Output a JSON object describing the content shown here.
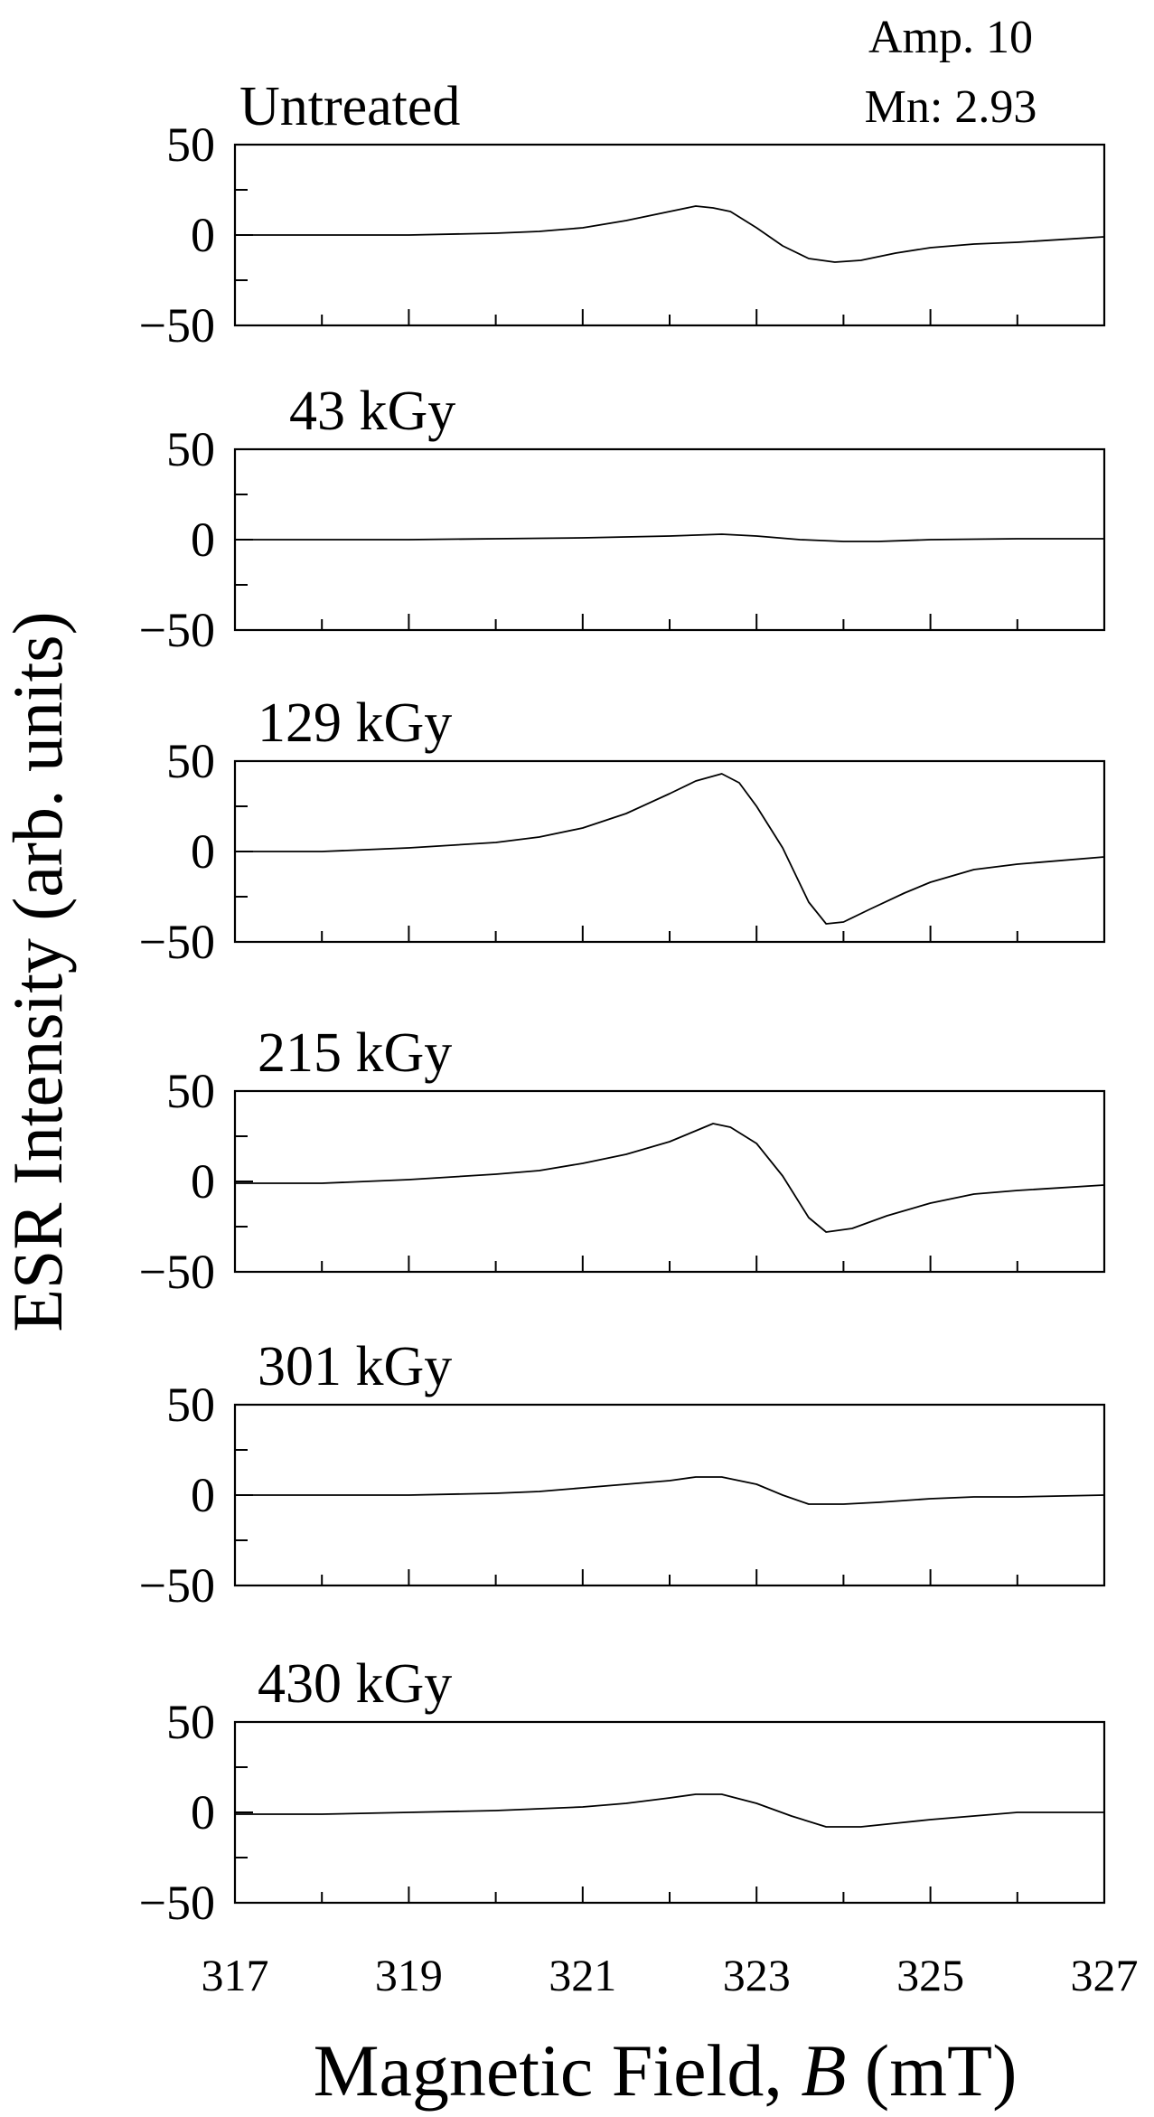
{
  "chart_data": {
    "type": "line",
    "ylabel": "ESR Intensity (arb. units)",
    "xlabel_prefix": "Magnetic  Field, ",
    "xlabel_var": "B",
    "xlabel_suffix": " (mT)",
    "annotation": [
      "Amp. 10",
      "Mn: 2.93"
    ],
    "xlim": [
      317,
      327
    ],
    "ylim": [
      -50,
      50
    ],
    "x_ticks": [
      317,
      319,
      321,
      323,
      325,
      327
    ],
    "x_tick_labels": [
      "317",
      "319",
      "321",
      "323",
      "325",
      "327"
    ],
    "y_ticks": [
      50,
      0,
      -50
    ],
    "y_tick_labels": [
      "50",
      "0",
      "−50"
    ],
    "grid": false,
    "panels": [
      {
        "label": "Untreated",
        "x": [
          317,
          318,
          319,
          320,
          320.5,
          321,
          321.5,
          322,
          322.3,
          322.5,
          322.7,
          323,
          323.3,
          323.6,
          323.9,
          324.2,
          324.6,
          325,
          325.5,
          326,
          327
        ],
        "y": [
          0,
          0,
          0,
          1,
          2,
          4,
          8,
          13,
          16,
          15,
          13,
          4,
          -6,
          -13,
          -15,
          -14,
          -10,
          -7,
          -5,
          -4,
          -1
        ]
      },
      {
        "label": "43 kGy",
        "x": [
          317,
          318,
          319,
          320,
          321,
          322,
          322.6,
          323,
          323.5,
          324,
          324.4,
          325,
          326,
          327
        ],
        "y": [
          0,
          0,
          0,
          0.5,
          1,
          2,
          3,
          2,
          0,
          -1,
          -1,
          0,
          0.5,
          0.5
        ]
      },
      {
        "label": "129 kGy",
        "x": [
          317,
          318,
          319,
          320,
          320.5,
          321,
          321.5,
          322,
          322.3,
          322.6,
          322.8,
          323,
          323.3,
          323.6,
          323.8,
          324,
          324.3,
          324.7,
          325,
          325.5,
          326,
          327
        ],
        "y": [
          0,
          0,
          2,
          5,
          8,
          13,
          21,
          32,
          39,
          43,
          38,
          25,
          2,
          -28,
          -40,
          -39,
          -32,
          -23,
          -17,
          -10,
          -7,
          -3
        ]
      },
      {
        "label": "215 kGy",
        "x": [
          317,
          318,
          319,
          320,
          320.5,
          321,
          321.5,
          322,
          322.3,
          322.5,
          322.7,
          323,
          323.3,
          323.6,
          323.8,
          324.1,
          324.5,
          325,
          325.5,
          326,
          327
        ],
        "y": [
          -1,
          -1,
          1,
          4,
          6,
          10,
          15,
          22,
          28,
          32,
          30,
          21,
          3,
          -20,
          -28,
          -26,
          -19,
          -12,
          -7,
          -5,
          -2
        ]
      },
      {
        "label": "301 kGy",
        "x": [
          317,
          318,
          319,
          320,
          320.5,
          321,
          321.5,
          322,
          322.3,
          322.6,
          323,
          323.3,
          323.6,
          324,
          324.4,
          325,
          325.5,
          326,
          327
        ],
        "y": [
          0,
          0,
          0,
          1,
          2,
          4,
          6,
          8,
          10,
          10,
          6,
          0,
          -5,
          -5,
          -4,
          -2,
          -1,
          -1,
          0
        ]
      },
      {
        "label": "430 kGy",
        "x": [
          317,
          318,
          319,
          320,
          320.5,
          321,
          321.5,
          322,
          322.3,
          322.6,
          323,
          323.4,
          323.8,
          324.2,
          324.6,
          325,
          325.5,
          326,
          327
        ],
        "y": [
          -1,
          -1,
          0,
          1,
          2,
          3,
          5,
          8,
          10,
          10,
          5,
          -2,
          -8,
          -8,
          -6,
          -4,
          -2,
          0,
          0
        ]
      }
    ]
  }
}
